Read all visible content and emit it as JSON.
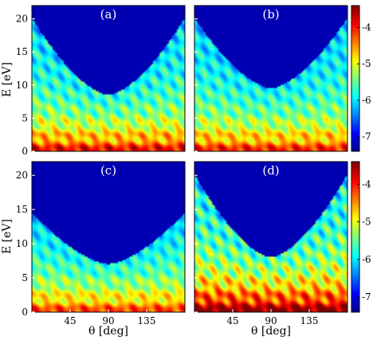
{
  "chart_data": {
    "type": "heatmap",
    "figure_axes": {
      "xlabel": "θ [deg]",
      "ylabel": "E [eV]",
      "xticks": [
        "45",
        "90",
        "135"
      ],
      "xtick_values": [
        45,
        90,
        135
      ],
      "yticks_top": [
        "0",
        "5",
        "10",
        "15",
        "20"
      ],
      "yticks_bottom": [
        "0",
        "5",
        "10",
        "15",
        "20"
      ],
      "ytick_values": [
        0,
        5,
        10,
        15,
        20
      ],
      "xlim": [
        0,
        180
      ],
      "ylim": [
        0,
        22
      ]
    },
    "colorbar": {
      "ticks": [
        "-4",
        "-5",
        "-6",
        "-7"
      ],
      "tick_values": [
        -4,
        -5,
        -6,
        -7
      ],
      "range": [
        -7.4,
        -3.4
      ]
    },
    "panels": [
      {
        "label": "(a)",
        "min_energy_at_90": 8.5,
        "edge_height": 20,
        "intensity": 0.75
      },
      {
        "label": "(b)",
        "min_energy_at_90": 9.5,
        "edge_height": 20,
        "intensity": 0.7
      },
      {
        "label": "(c)",
        "min_energy_at_90": 7.0,
        "edge_height": 14.5,
        "intensity": 0.65
      },
      {
        "label": "(d)",
        "min_energy_at_90": 8.0,
        "edge_height": 20,
        "intensity": 0.95
      }
    ]
  }
}
